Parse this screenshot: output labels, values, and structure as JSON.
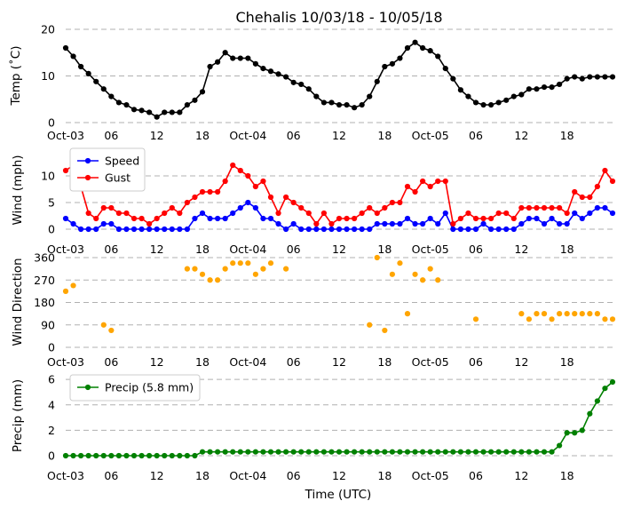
{
  "chart_data": {
    "type": "line",
    "title": "Chehalis 10/03/18 - 10/05/18",
    "xlabel": "Time (UTC)",
    "x_tick_labels": [
      "Oct-03",
      "06",
      "12",
      "18",
      "Oct-04",
      "06",
      "12",
      "18",
      "Oct-05",
      "06",
      "12",
      "18"
    ],
    "x_tick_hours": [
      0,
      6,
      12,
      18,
      24,
      30,
      36,
      42,
      48,
      54,
      60,
      66
    ],
    "x_range_hours": [
      0,
      72
    ],
    "hours": [
      0,
      1,
      2,
      3,
      4,
      5,
      6,
      7,
      8,
      9,
      10,
      11,
      12,
      13,
      14,
      15,
      16,
      17,
      18,
      19,
      20,
      21,
      22,
      23,
      24,
      25,
      26,
      27,
      28,
      29,
      30,
      31,
      32,
      33,
      34,
      35,
      36,
      37,
      38,
      39,
      40,
      41,
      42,
      43,
      44,
      45,
      46,
      47,
      48,
      49,
      50,
      51,
      52,
      53,
      54,
      55,
      56,
      57,
      58,
      59,
      60,
      61,
      62,
      63,
      64,
      65,
      66,
      67,
      68,
      69,
      70,
      71,
      72
    ],
    "grid": "horizontal-dashed",
    "panels": [
      {
        "ylabel": "Temp (˚C)",
        "ylim": [
          0,
          20
        ],
        "yticks": [
          0,
          10,
          20
        ],
        "series": [
          {
            "color": "#000000",
            "values": [
              16,
              14.2,
              12,
              10.5,
              8.8,
              7.2,
              5.6,
              4.3,
              3.8,
              2.8,
              2.6,
              2.2,
              1.2,
              2.2,
              2.2,
              2.2,
              3.8,
              4.8,
              6.6,
              12,
              13,
              15,
              13.8,
              13.8,
              13.8,
              12.6,
              11.6,
              11,
              10.4,
              9.8,
              8.6,
              8.2,
              7.2,
              5.6,
              4.3,
              4.3,
              3.8,
              3.8,
              3.2,
              3.8,
              5.6,
              8.8,
              12,
              12.6,
              13.8,
              16,
              17.2,
              16,
              15.4,
              14.2,
              11.6,
              9.4,
              7,
              5.6,
              4.3,
              3.8,
              3.8,
              4.3,
              4.8,
              5.6,
              6,
              7.2,
              7.2,
              7.6,
              7.6,
              8.2,
              9.4,
              9.8,
              9.4,
              9.8,
              9.8,
              9.8,
              9.8
            ]
          }
        ]
      },
      {
        "ylabel": "Wind (mph)",
        "ylim": [
          0,
          13
        ],
        "yticks": [
          0,
          5,
          10
        ],
        "legend_position": "upper-left",
        "series": [
          {
            "name": "Speed",
            "color": "#0000ff",
            "values": [
              2,
              1,
              0,
              0,
              0,
              1,
              1,
              0,
              0,
              0,
              0,
              0,
              0,
              0,
              0,
              0,
              0,
              2,
              3,
              2,
              2,
              2,
              3,
              4,
              5,
              4,
              2,
              2,
              1,
              0,
              1,
              0,
              0,
              0,
              0,
              0,
              0,
              0,
              0,
              0,
              0,
              1,
              1,
              1,
              1,
              2,
              1,
              1,
              2,
              1,
              3,
              0,
              0,
              0,
              0,
              1,
              0,
              0,
              0,
              0,
              1,
              2,
              2,
              1,
              2,
              1,
              1,
              3,
              2,
              3,
              4,
              4,
              3
            ]
          },
          {
            "name": "Gust",
            "color": "#ff0000",
            "values": [
              11,
              12,
              8,
              3,
              2,
              4,
              4,
              3,
              3,
              2,
              2,
              1,
              2,
              3,
              4,
              3,
              5,
              6,
              7,
              7,
              7,
              9,
              12,
              11,
              10,
              8,
              9,
              6,
              3,
              6,
              5,
              4,
              3,
              1,
              3,
              1,
              2,
              2,
              2,
              3,
              4,
              3,
              4,
              5,
              5,
              8,
              7,
              9,
              8,
              9,
              9,
              1,
              2,
              3,
              2,
              2,
              2,
              3,
              3,
              2,
              4,
              4,
              4,
              4,
              4,
              4,
              3,
              7,
              6,
              6,
              8,
              11,
              9
            ]
          }
        ]
      },
      {
        "ylabel": "Wind Direction",
        "ylim": [
          0,
          360
        ],
        "yticks": [
          0,
          90,
          180,
          270,
          360
        ],
        "series": [
          {
            "color": "#ffa500",
            "values": [
              225,
              248,
              null,
              null,
              null,
              90,
              68,
              null,
              null,
              null,
              null,
              null,
              null,
              null,
              null,
              null,
              315,
              315,
              293,
              270,
              270,
              315,
              338,
              338,
              338,
              293,
              315,
              338,
              null,
              315,
              null,
              null,
              null,
              null,
              null,
              null,
              null,
              null,
              null,
              null,
              90,
              360,
              68,
              293,
              338,
              135,
              293,
              270,
              315,
              270,
              null,
              null,
              null,
              null,
              113,
              null,
              null,
              null,
              null,
              null,
              135,
              113,
              135,
              135,
              113,
              135,
              135,
              135,
              135,
              135,
              135,
              113,
              113
            ]
          }
        ]
      },
      {
        "ylabel": "Precip (mm)",
        "ylim": [
          0,
          6.5
        ],
        "yticks": [
          0,
          2,
          4,
          6
        ],
        "legend_position": "upper-left",
        "series": [
          {
            "name": "Precip (5.8 mm)",
            "color": "#008000",
            "values": [
              0,
              0,
              0,
              0,
              0,
              0,
              0,
              0,
              0,
              0,
              0,
              0,
              0,
              0,
              0,
              0,
              0,
              0,
              0.3,
              0.3,
              0.3,
              0.3,
              0.3,
              0.3,
              0.3,
              0.3,
              0.3,
              0.3,
              0.3,
              0.3,
              0.3,
              0.3,
              0.3,
              0.3,
              0.3,
              0.3,
              0.3,
              0.3,
              0.3,
              0.3,
              0.3,
              0.3,
              0.3,
              0.3,
              0.3,
              0.3,
              0.3,
              0.3,
              0.3,
              0.3,
              0.3,
              0.3,
              0.3,
              0.3,
              0.3,
              0.3,
              0.3,
              0.3,
              0.3,
              0.3,
              0.3,
              0.3,
              0.3,
              0.3,
              0.3,
              0.8,
              1.8,
              1.8,
              2,
              3.3,
              4.3,
              5.3,
              5.8
            ]
          }
        ]
      }
    ]
  }
}
